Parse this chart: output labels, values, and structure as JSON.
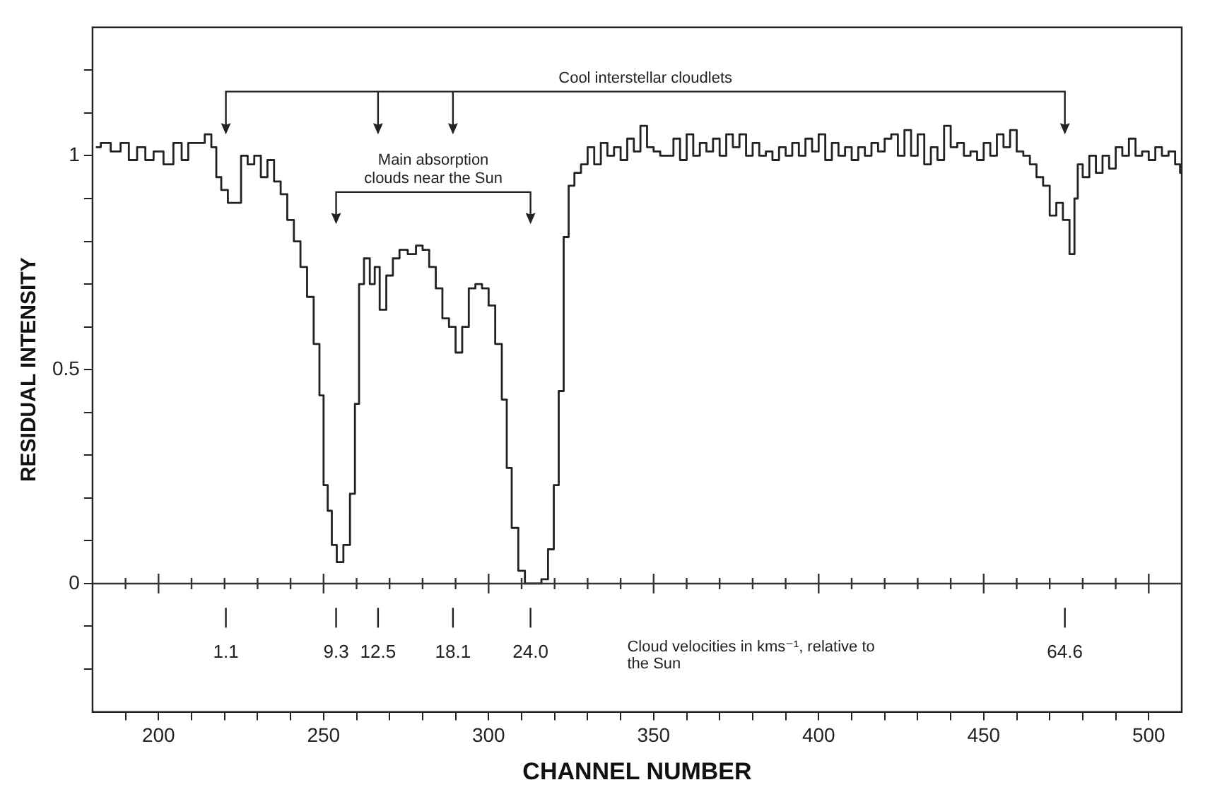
{
  "chart_data": {
    "type": "step",
    "xlabel": "CHANNEL NUMBER",
    "ylabel": "RESIDUAL INTENSITY",
    "xlim": [
      180,
      510
    ],
    "ylim": [
      -0.3,
      1.3
    ],
    "xticks": [
      {
        "value": 190,
        "label": null
      },
      200,
      {
        "value": 210,
        "label": null
      },
      {
        "value": 220,
        "label": null
      },
      {
        "value": 230,
        "label": null
      },
      {
        "value": 240,
        "label": null
      },
      250,
      {
        "value": 260,
        "label": null
      },
      {
        "value": 270,
        "label": null
      },
      {
        "value": 280,
        "label": null
      },
      {
        "value": 290,
        "label": null
      },
      300,
      {
        "value": 310,
        "label": null
      },
      {
        "value": 320,
        "label": null
      },
      {
        "value": 330,
        "label": null
      },
      {
        "value": 340,
        "label": null
      },
      350,
      {
        "value": 360,
        "label": null
      },
      {
        "value": 370,
        "label": null
      },
      {
        "value": 380,
        "label": null
      },
      {
        "value": 390,
        "label": null
      },
      400,
      {
        "value": 410,
        "label": null
      },
      {
        "value": 420,
        "label": null
      },
      {
        "value": 430,
        "label": null
      },
      {
        "value": 440,
        "label": null
      },
      450,
      {
        "value": 460,
        "label": null
      },
      {
        "value": 470,
        "label": null
      },
      {
        "value": 480,
        "label": null
      },
      {
        "value": 490,
        "label": null
      },
      500
    ],
    "yticks": [
      {
        "value": -0.2,
        "label": null
      },
      {
        "value": -0.1,
        "label": null
      },
      0,
      {
        "value": 0.1,
        "label": null
      },
      {
        "value": 0.2,
        "label": null
      },
      {
        "value": 0.3,
        "label": null
      },
      {
        "value": 0.4,
        "label": null
      },
      0.5,
      {
        "value": 0.6,
        "label": null
      },
      {
        "value": 0.7,
        "label": null
      },
      {
        "value": 0.8,
        "label": null
      },
      {
        "value": 0.9,
        "label": null
      },
      1,
      {
        "value": 1.1,
        "label": null
      },
      {
        "value": 1.2,
        "label": null
      }
    ],
    "grid": false,
    "legend": false,
    "marker": "none",
    "line_style": "solid",
    "ref_lines": [
      {
        "axis": "y",
        "value": 0,
        "color": "#333333"
      }
    ],
    "annotations": [
      "Cool interstellar cloudlets",
      "Main absorption clouds near the Sun",
      "Cloud velocities in kms⁻¹, relative to the Sun",
      {
        "text": "1.1",
        "x": 220.4
      },
      {
        "text": "9.3",
        "x": 253.8
      },
      {
        "text": "12.5",
        "x": 266.5
      },
      {
        "text": "18.1",
        "x": 289.2
      },
      {
        "text": "24.0",
        "x": 312.7
      },
      {
        "text": "64.6",
        "x": 474.6
      }
    ],
    "series": [
      {
        "color": "#222222",
        "x": [
          181,
          184,
          187,
          190,
          192,
          195,
          197,
          200,
          203,
          206,
          208,
          210,
          213,
          215,
          217,
          218,
          220,
          222,
          224,
          226,
          228,
          230,
          232,
          234,
          236,
          238,
          240,
          242,
          244,
          246,
          248,
          249.5,
          250.5,
          252,
          253,
          255,
          257,
          259,
          260,
          261.5,
          263,
          265,
          266,
          268,
          270,
          272,
          274,
          277,
          279,
          281,
          283,
          285,
          287,
          289,
          291,
          293,
          295,
          297,
          299,
          301,
          303,
          305,
          306,
          308,
          310,
          312,
          315,
          317,
          319,
          320.5,
          322,
          323.5,
          325,
          327,
          329,
          331,
          333,
          335,
          337,
          339,
          341,
          343,
          345,
          347,
          349,
          351,
          353,
          355,
          357,
          359,
          361,
          363,
          365,
          367,
          369,
          371,
          373,
          375,
          377,
          379,
          381,
          383,
          385,
          387,
          389,
          391,
          393,
          395,
          397,
          399,
          401,
          403,
          405,
          407,
          409,
          411,
          413,
          415,
          417,
          419,
          421,
          423,
          425,
          427,
          429,
          431,
          433,
          435,
          437,
          439,
          441,
          443,
          445,
          447,
          449,
          451,
          453,
          455,
          457,
          459,
          461,
          463,
          465,
          467,
          469,
          471,
          473,
          475,
          477,
          478,
          479,
          481,
          483,
          485,
          487,
          489,
          491,
          493,
          495,
          497,
          499,
          501,
          503,
          505,
          507,
          509,
          510
        ],
        "values": [
          1.02,
          1.03,
          1.01,
          1.03,
          0.99,
          1.02,
          0.99,
          1.01,
          0.98,
          1.03,
          0.99,
          1.03,
          1.03,
          1.05,
          1.02,
          0.95,
          0.92,
          0.89,
          0.89,
          1.0,
          0.98,
          1.0,
          0.95,
          0.99,
          0.94,
          0.91,
          0.85,
          0.8,
          0.74,
          0.67,
          0.56,
          0.44,
          0.23,
          0.17,
          0.09,
          0.05,
          0.09,
          0.21,
          0.42,
          0.7,
          0.76,
          0.7,
          0.74,
          0.64,
          0.72,
          0.76,
          0.78,
          0.77,
          0.79,
          0.78,
          0.74,
          0.69,
          0.62,
          0.6,
          0.54,
          0.6,
          0.69,
          0.7,
          0.69,
          0.65,
          0.56,
          0.43,
          0.27,
          0.13,
          0.03,
          0.0,
          0.0,
          0.01,
          0.08,
          0.23,
          0.45,
          0.81,
          0.93,
          0.96,
          0.98,
          1.02,
          0.98,
          1.03,
          1.0,
          1.02,
          0.99,
          1.04,
          1.01,
          1.07,
          1.02,
          1.01,
          1.0,
          1.0,
          1.04,
          0.99,
          1.05,
          1.0,
          1.03,
          1.01,
          1.04,
          1.0,
          1.05,
          1.02,
          1.05,
          1.0,
          1.03,
          1.0,
          1.01,
          0.99,
          1.02,
          1.0,
          1.03,
          1.0,
          1.04,
          1.01,
          1.05,
          0.99,
          1.03,
          1.0,
          1.02,
          0.99,
          1.02,
          1.0,
          1.03,
          1.01,
          1.04,
          1.05,
          1.0,
          1.06,
          1.0,
          1.05,
          0.98,
          1.02,
          0.99,
          1.07,
          1.02,
          1.03,
          1.0,
          1.01,
          0.99,
          1.03,
          1.0,
          1.05,
          1.02,
          1.06,
          1.01,
          1.0,
          0.98,
          0.95,
          0.93,
          0.86,
          0.89,
          0.85,
          0.77,
          0.9,
          0.98,
          0.95,
          1.0,
          0.96,
          1.0,
          0.97,
          1.02,
          1.0,
          1.04,
          1.0,
          1.01,
          0.99,
          1.02,
          1.0,
          1.01,
          0.98,
          0.96
        ]
      }
    ]
  }
}
